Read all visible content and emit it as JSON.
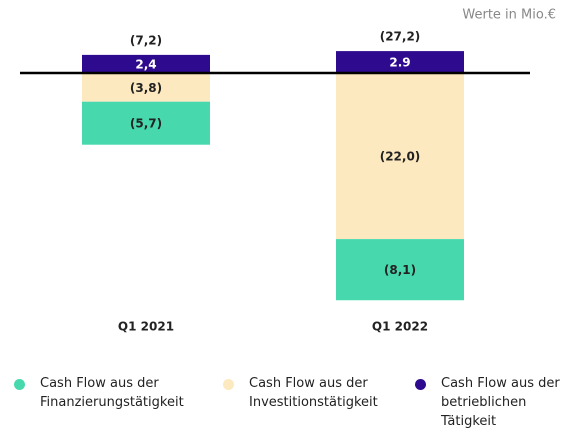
{
  "chart_data": {
    "type": "bar",
    "stacked": true,
    "subtitle": "Werte in Mio.€",
    "categories": [
      "Q1 2021",
      "Q1 2022"
    ],
    "series": [
      {
        "name": "Cash Flow aus der betrieblichen Tätigkeit",
        "color": "#2e0a8f",
        "values": [
          2.4,
          2.9
        ],
        "value_labels": [
          "2,4",
          "2.9"
        ]
      },
      {
        "name": "Cash Flow aus der Investitionstätigkeit",
        "color": "#fde9bf",
        "values": [
          -3.8,
          -22.0
        ],
        "value_labels": [
          "(3,8)",
          "(22,0)"
        ]
      },
      {
        "name": "Cash Flow aus der Finanzierungstätigkeit",
        "color": "#47d9ad",
        "values": [
          -5.7,
          -8.1
        ],
        "value_labels": [
          "(5,7)",
          "(8,1)"
        ]
      }
    ],
    "totals": {
      "values": [
        -7.2,
        -27.2
      ],
      "value_labels": [
        "(7,2)",
        "(27,2)"
      ]
    }
  }
}
